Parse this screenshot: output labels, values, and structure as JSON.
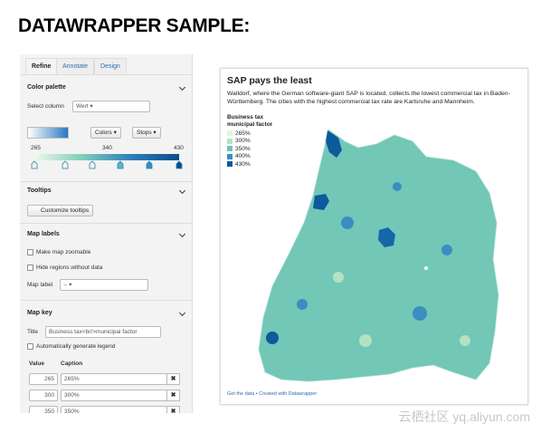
{
  "heading": "DATAWRAPPER SAMPLE:",
  "sidebar": {
    "tabs": [
      "Refine",
      "Annotate",
      "Design"
    ],
    "color_palette": {
      "title": "Color palette",
      "select_column_label": "Select column",
      "select_column_value": "Wert",
      "colors_button": "Colors",
      "stops_button": "Stops",
      "scale_labels": [
        "265",
        "340",
        "430"
      ]
    },
    "tooltips": {
      "title": "Tooltips",
      "button": "Customize tooltips"
    },
    "map_labels": {
      "title": "Map labels",
      "options": [
        "Make map zoomable",
        "Hide regions without data"
      ],
      "map_label": "Map label",
      "map_label_value": "--"
    },
    "map_key": {
      "title": "Map key",
      "title_label": "Title",
      "title_value": "Business tax<br/>municipal factor",
      "auto_legend": "Automatically generate legend",
      "columns": [
        "Value",
        "Caption"
      ],
      "rows": [
        [
          "265",
          "265%"
        ],
        [
          "300",
          "300%"
        ],
        [
          "350",
          "350%"
        ]
      ]
    }
  },
  "chart": {
    "title": "SAP pays the least",
    "description": "Walldorf, where the German software-giant SAP is located, collects the lowest commercial tax in Baden-Württemberg. The cities with the highest commercial tax rate are Karlsruhe and Mannheim.",
    "legend_title": [
      "Business tax",
      "municipal factor"
    ],
    "legend": [
      {
        "label": "265%",
        "color": "#e3f4dc"
      },
      {
        "label": "300%",
        "color": "#b3e2c0"
      },
      {
        "label": "350%",
        "color": "#6fc5b8"
      },
      {
        "label": "400%",
        "color": "#3b8ec2"
      },
      {
        "label": "430%",
        "color": "#0d5a9c"
      }
    ],
    "footer": "Get the data • Created with Datawrapper"
  },
  "watermark": "云栖社区 yq.aliyun.com"
}
